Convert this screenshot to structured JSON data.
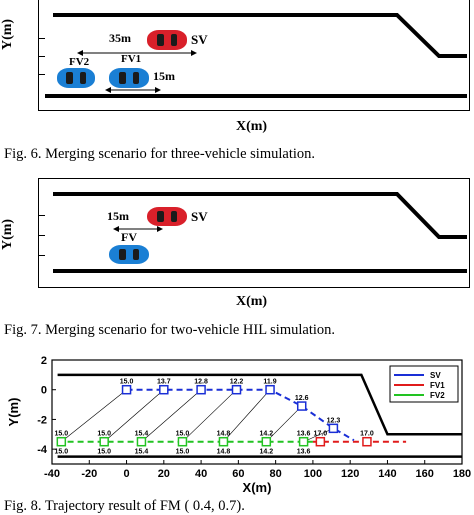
{
  "fig6": {
    "ylabel": "Y(m)",
    "xlabel": "X(m)",
    "caption": "Fig. 6.    Merging scenario for three-vehicle simulation.",
    "vehicles": [
      {
        "label": "SV",
        "color": "#d9202a"
      },
      {
        "label": "FV1",
        "color": "#1a7fd4"
      },
      {
        "label": "FV2",
        "color": "#1a7fd4"
      }
    ],
    "gaps": {
      "sv_fv2": "35m",
      "fv1": "15m"
    }
  },
  "fig7": {
    "ylabel": "Y(m)",
    "xlabel": "X(m)",
    "caption": "Fig. 7.    Merging scenario for two-vehicle HIL simulation.",
    "vehicles": [
      {
        "label": "SV",
        "color": "#d9202a"
      },
      {
        "label": "FV",
        "color": "#1a7fd4"
      }
    ],
    "gaps": {
      "sv_fv": "15m"
    }
  },
  "fig8": {
    "caption": "Fig. 8.    Trajectory result of FM (     0.4,       0.7).",
    "chart_data": {
      "type": "line",
      "xlabel": "X(m)",
      "ylabel": "Y(m)",
      "xlim": [
        -40,
        180
      ],
      "ylim": [
        -5,
        2
      ],
      "xticks": [
        -40,
        -20,
        0,
        20,
        40,
        60,
        80,
        100,
        120,
        140,
        160,
        180
      ],
      "yticks": [
        2,
        0,
        -2,
        -4
      ],
      "legend_position": "top-right",
      "series": [
        {
          "name": "SV",
          "color": "#1a2fd6",
          "x": [
            0,
            20,
            40,
            59,
            77,
            94,
            111
          ],
          "y": [
            0,
            0,
            0,
            0,
            0,
            -1.1,
            -2.6
          ],
          "labels": [
            "15.0",
            "13.7",
            "12.8",
            "12.2",
            "11.9",
            "12.6",
            "12.3"
          ]
        },
        {
          "name": "FV1",
          "color": "#e01b1b",
          "x": [
            104,
            129
          ],
          "y": [
            -3.5,
            -3.5
          ],
          "labels": [
            "17.0",
            "17.0"
          ]
        },
        {
          "name": "FV2",
          "color": "#22c322",
          "x": [
            -35,
            -12,
            8,
            30,
            52,
            75,
            95
          ],
          "y": [
            -3.5,
            -3.5,
            -3.5,
            -3.5,
            -3.5,
            -3.5,
            -3.5
          ],
          "labels_above": [
            "15.0",
            "15.0",
            "15.4",
            "15.0",
            "14.8",
            "14.2",
            "13.6"
          ],
          "labels_below": [
            "15.0",
            "15.0",
            "15.4",
            "15.0",
            "14.8",
            "14.2",
            "13.6"
          ]
        }
      ]
    }
  }
}
